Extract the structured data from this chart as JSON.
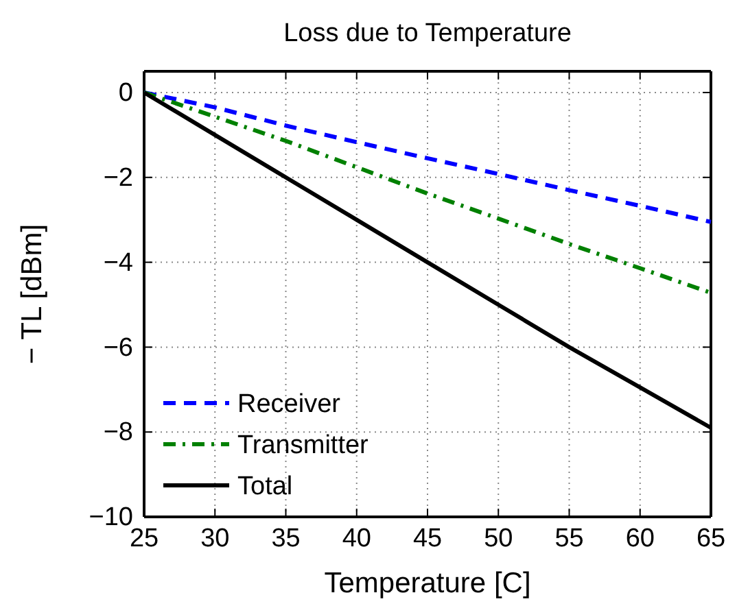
{
  "chart_data": {
    "type": "line",
    "title": "Loss due to Temperature",
    "xlabel": "Temperature [C]",
    "ylabel": "− TL [dBm]",
    "x": [
      25,
      30,
      35,
      40,
      45,
      50,
      55,
      60,
      65
    ],
    "series": [
      {
        "name": "Receiver",
        "color": "#0000ff",
        "line_style": "dashed",
        "values": [
          0,
          -0.35,
          -0.78,
          -1.17,
          -1.55,
          -1.92,
          -2.3,
          -2.67,
          -3.05
        ]
      },
      {
        "name": "Transmitter",
        "color": "#008000",
        "line_style": "dashdot",
        "values": [
          0,
          -0.57,
          -1.14,
          -1.76,
          -2.38,
          -2.97,
          -3.57,
          -4.14,
          -4.72
        ]
      },
      {
        "name": "Total",
        "color": "#000000",
        "line_style": "solid",
        "values": [
          0,
          -1,
          -2,
          -3,
          -4,
          -5,
          -6,
          -6.95,
          -7.9
        ]
      }
    ],
    "xlim": [
      25,
      65
    ],
    "xticks": [
      25,
      30,
      35,
      40,
      45,
      50,
      55,
      60,
      65
    ],
    "ylim": [
      -10,
      0.5
    ],
    "yticks": [
      -10,
      -8,
      -6,
      -4,
      -2,
      0
    ],
    "grid": true,
    "legend": "bottom left",
    "marker": "none"
  }
}
